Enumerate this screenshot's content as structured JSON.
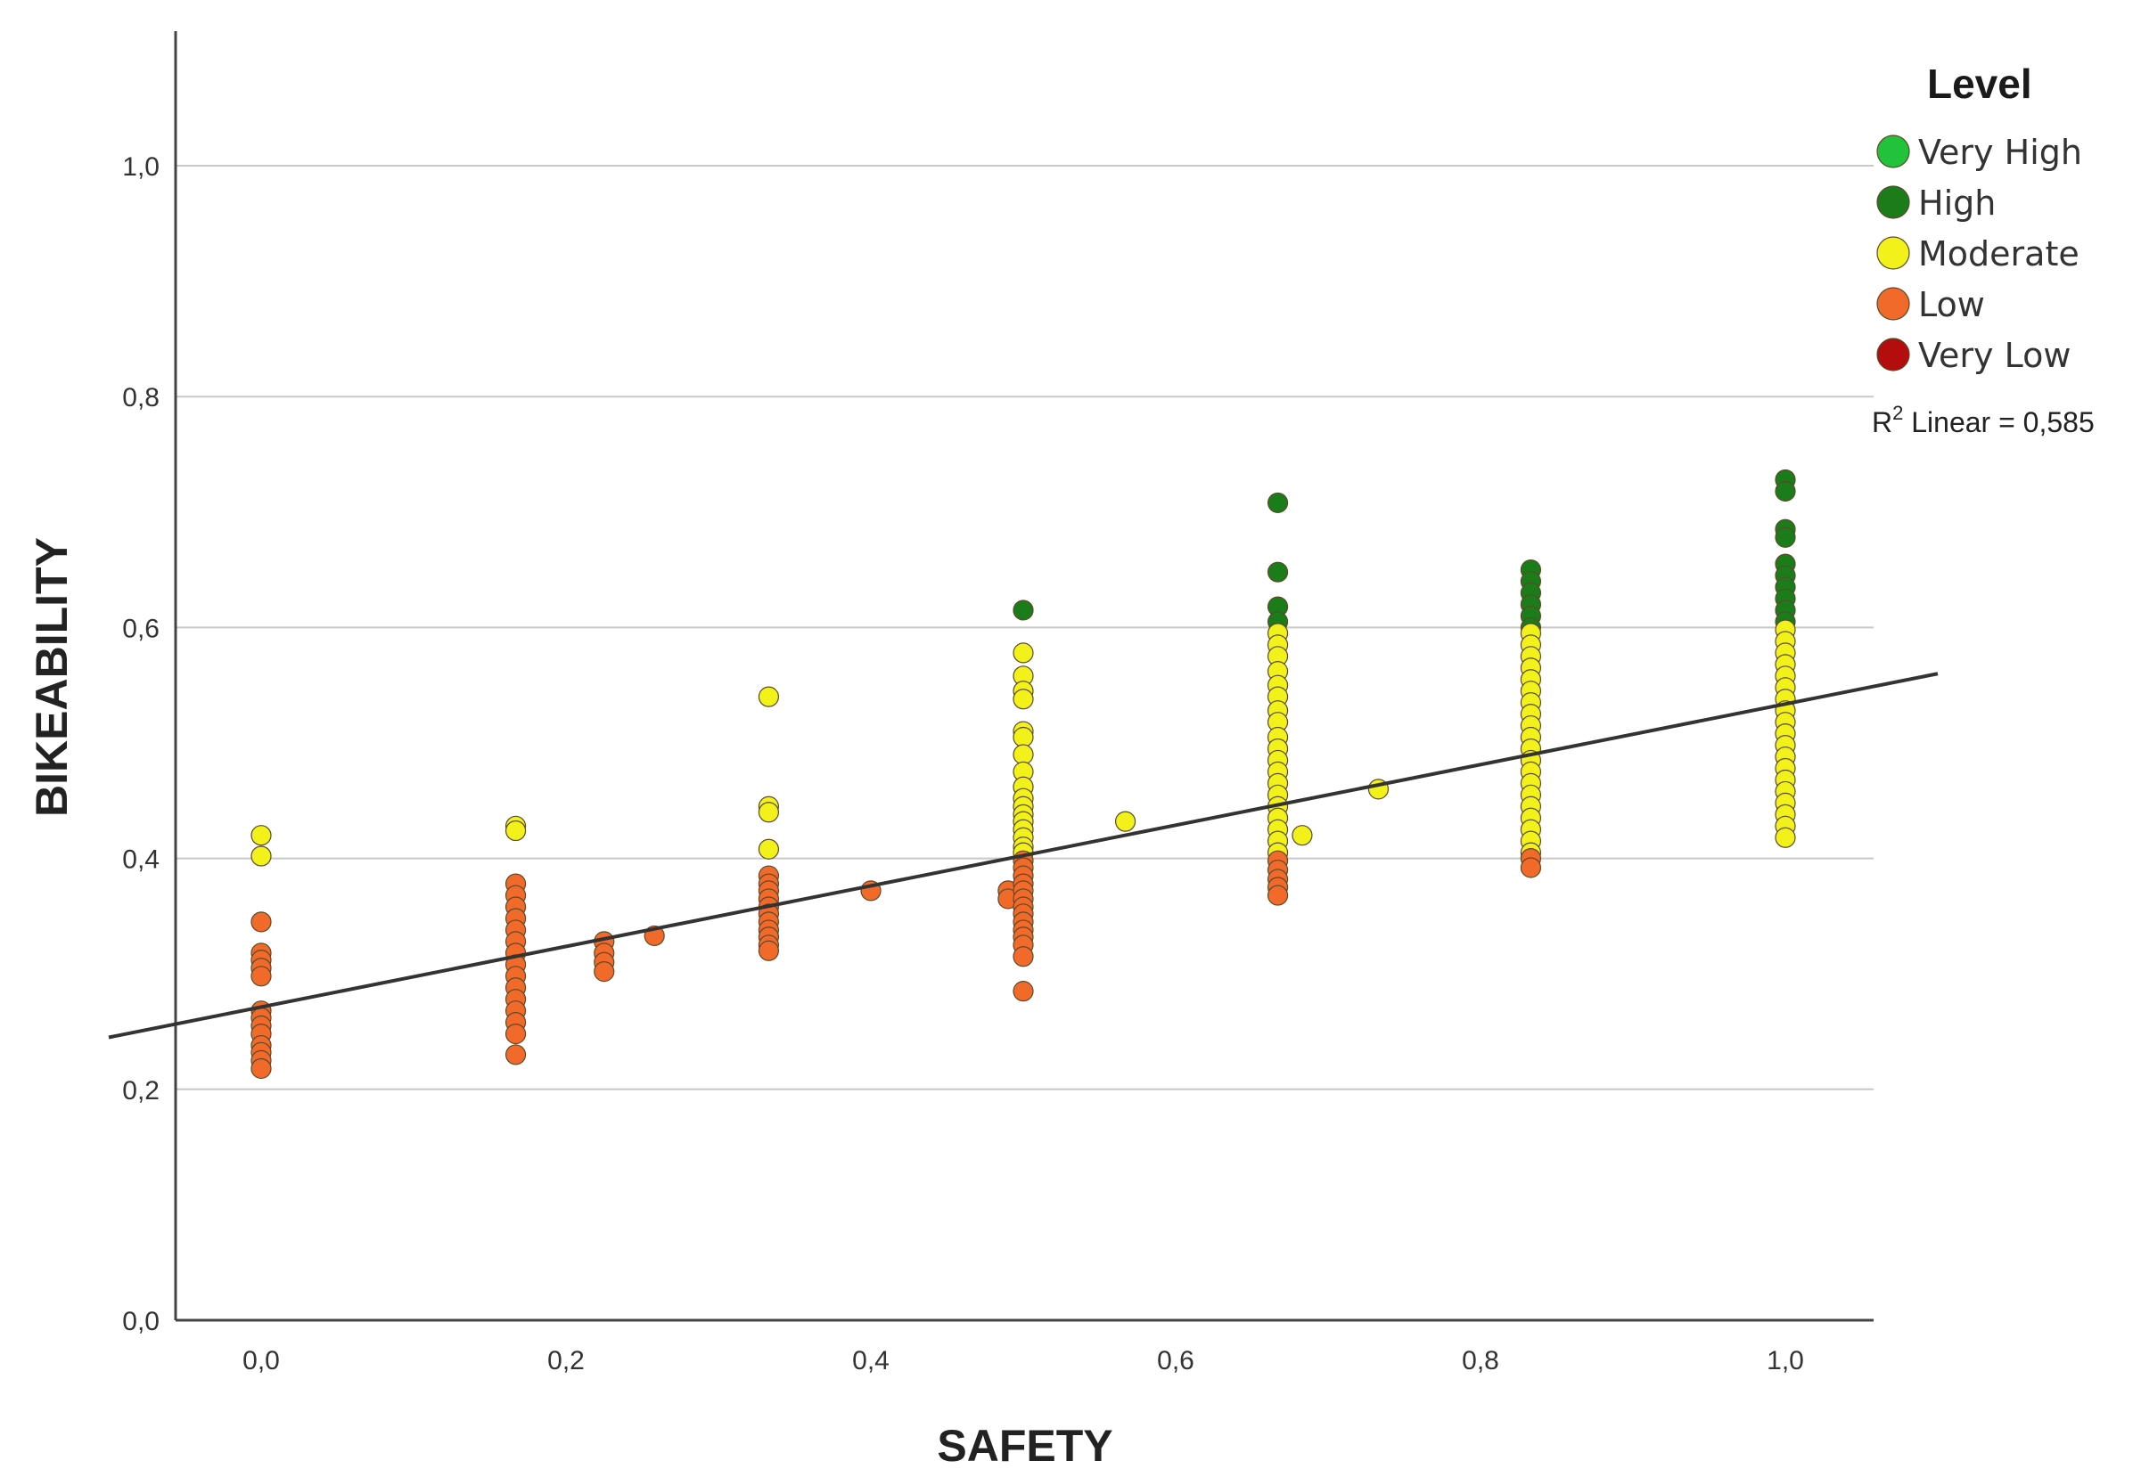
{
  "chart_data": {
    "type": "scatter",
    "xlabel": "SAFETY",
    "ylabel": "BIKEABILITY",
    "xlim": [
      -0.1,
      1.1
    ],
    "ylim": [
      0.0,
      1.12
    ],
    "x_ticks": [
      "0,0",
      "0,2",
      "0,4",
      "0,6",
      "0,8",
      "1,0"
    ],
    "y_ticks": [
      "0,0",
      "0,2",
      "0,4",
      "0,6",
      "0,8",
      "1,0"
    ],
    "grid": "horizontal",
    "legend": {
      "title": "Level",
      "placement": "top-right",
      "entries": [
        {
          "name": "Very High",
          "color": "#22c33a"
        },
        {
          "name": "High",
          "color": "#1a7d1a"
        },
        {
          "name": "Moderate",
          "color": "#f2f21a"
        },
        {
          "name": "Low",
          "color": "#f26a2a"
        },
        {
          "name": "Very Low",
          "color": "#b30d0d"
        }
      ]
    },
    "fit_line": {
      "type": "linear",
      "label_prefix": "R",
      "label_sup": "2",
      "label_rest": " Linear = 0,585",
      "start": [
        -0.1,
        0.245
      ],
      "end": [
        1.1,
        0.56
      ]
    },
    "series": [
      {
        "name": "High",
        "color": "#1a7d1a",
        "points": [
          [
            0.5,
            0.615
          ],
          [
            0.667,
            0.708
          ],
          [
            0.667,
            0.648
          ],
          [
            0.667,
            0.618
          ],
          [
            0.667,
            0.605
          ],
          [
            0.833,
            0.65
          ],
          [
            0.833,
            0.64
          ],
          [
            0.833,
            0.63
          ],
          [
            0.833,
            0.62
          ],
          [
            0.833,
            0.61
          ],
          [
            0.833,
            0.6
          ],
          [
            1.0,
            0.728
          ],
          [
            1.0,
            0.718
          ],
          [
            1.0,
            0.685
          ],
          [
            1.0,
            0.678
          ],
          [
            1.0,
            0.655
          ],
          [
            1.0,
            0.645
          ],
          [
            1.0,
            0.635
          ],
          [
            1.0,
            0.625
          ],
          [
            1.0,
            0.615
          ],
          [
            1.0,
            0.605
          ]
        ]
      },
      {
        "name": "Moderate",
        "color": "#f2f21a",
        "points": [
          [
            0.0,
            0.42
          ],
          [
            0.0,
            0.402
          ],
          [
            0.167,
            0.428
          ],
          [
            0.167,
            0.424
          ],
          [
            0.333,
            0.54
          ],
          [
            0.333,
            0.445
          ],
          [
            0.333,
            0.44
          ],
          [
            0.333,
            0.408
          ],
          [
            0.5,
            0.578
          ],
          [
            0.5,
            0.558
          ],
          [
            0.5,
            0.545
          ],
          [
            0.5,
            0.538
          ],
          [
            0.5,
            0.51
          ],
          [
            0.5,
            0.505
          ],
          [
            0.5,
            0.49
          ],
          [
            0.5,
            0.475
          ],
          [
            0.5,
            0.462
          ],
          [
            0.5,
            0.452
          ],
          [
            0.5,
            0.445
          ],
          [
            0.5,
            0.438
          ],
          [
            0.5,
            0.432
          ],
          [
            0.5,
            0.425
          ],
          [
            0.5,
            0.418
          ],
          [
            0.5,
            0.41
          ],
          [
            0.5,
            0.405
          ],
          [
            0.567,
            0.432
          ],
          [
            0.667,
            0.595
          ],
          [
            0.667,
            0.585
          ],
          [
            0.667,
            0.575
          ],
          [
            0.667,
            0.562
          ],
          [
            0.667,
            0.55
          ],
          [
            0.667,
            0.54
          ],
          [
            0.667,
            0.528
          ],
          [
            0.667,
            0.518
          ],
          [
            0.667,
            0.505
          ],
          [
            0.667,
            0.495
          ],
          [
            0.667,
            0.485
          ],
          [
            0.667,
            0.475
          ],
          [
            0.667,
            0.465
          ],
          [
            0.667,
            0.455
          ],
          [
            0.667,
            0.445
          ],
          [
            0.667,
            0.435
          ],
          [
            0.667,
            0.425
          ],
          [
            0.667,
            0.415
          ],
          [
            0.667,
            0.405
          ],
          [
            0.683,
            0.42
          ],
          [
            0.733,
            0.46
          ],
          [
            0.833,
            0.595
          ],
          [
            0.833,
            0.585
          ],
          [
            0.833,
            0.575
          ],
          [
            0.833,
            0.565
          ],
          [
            0.833,
            0.555
          ],
          [
            0.833,
            0.545
          ],
          [
            0.833,
            0.535
          ],
          [
            0.833,
            0.525
          ],
          [
            0.833,
            0.515
          ],
          [
            0.833,
            0.505
          ],
          [
            0.833,
            0.495
          ],
          [
            0.833,
            0.485
          ],
          [
            0.833,
            0.475
          ],
          [
            0.833,
            0.465
          ],
          [
            0.833,
            0.455
          ],
          [
            0.833,
            0.445
          ],
          [
            0.833,
            0.435
          ],
          [
            0.833,
            0.425
          ],
          [
            0.833,
            0.415
          ],
          [
            0.833,
            0.405
          ],
          [
            1.0,
            0.598
          ],
          [
            1.0,
            0.588
          ],
          [
            1.0,
            0.578
          ],
          [
            1.0,
            0.568
          ],
          [
            1.0,
            0.558
          ],
          [
            1.0,
            0.548
          ],
          [
            1.0,
            0.538
          ],
          [
            1.0,
            0.528
          ],
          [
            1.0,
            0.518
          ],
          [
            1.0,
            0.508
          ],
          [
            1.0,
            0.498
          ],
          [
            1.0,
            0.488
          ],
          [
            1.0,
            0.478
          ],
          [
            1.0,
            0.468
          ],
          [
            1.0,
            0.458
          ],
          [
            1.0,
            0.448
          ],
          [
            1.0,
            0.438
          ],
          [
            1.0,
            0.428
          ],
          [
            1.0,
            0.418
          ]
        ]
      },
      {
        "name": "Low",
        "color": "#f26a2a",
        "points": [
          [
            0.0,
            0.345
          ],
          [
            0.0,
            0.318
          ],
          [
            0.0,
            0.312
          ],
          [
            0.0,
            0.305
          ],
          [
            0.0,
            0.298
          ],
          [
            0.0,
            0.268
          ],
          [
            0.0,
            0.262
          ],
          [
            0.0,
            0.255
          ],
          [
            0.0,
            0.248
          ],
          [
            0.0,
            0.238
          ],
          [
            0.0,
            0.232
          ],
          [
            0.0,
            0.225
          ],
          [
            0.0,
            0.218
          ],
          [
            0.167,
            0.378
          ],
          [
            0.167,
            0.368
          ],
          [
            0.167,
            0.358
          ],
          [
            0.167,
            0.348
          ],
          [
            0.167,
            0.338
          ],
          [
            0.167,
            0.328
          ],
          [
            0.167,
            0.318
          ],
          [
            0.167,
            0.308
          ],
          [
            0.167,
            0.298
          ],
          [
            0.167,
            0.288
          ],
          [
            0.167,
            0.278
          ],
          [
            0.167,
            0.268
          ],
          [
            0.167,
            0.258
          ],
          [
            0.167,
            0.248
          ],
          [
            0.167,
            0.23
          ],
          [
            0.225,
            0.328
          ],
          [
            0.225,
            0.318
          ],
          [
            0.225,
            0.31
          ],
          [
            0.225,
            0.302
          ],
          [
            0.258,
            0.333
          ],
          [
            0.333,
            0.385
          ],
          [
            0.333,
            0.378
          ],
          [
            0.333,
            0.372
          ],
          [
            0.333,
            0.365
          ],
          [
            0.333,
            0.358
          ],
          [
            0.333,
            0.352
          ],
          [
            0.333,
            0.345
          ],
          [
            0.333,
            0.338
          ],
          [
            0.333,
            0.332
          ],
          [
            0.333,
            0.325
          ],
          [
            0.333,
            0.32
          ],
          [
            0.4,
            0.372
          ],
          [
            0.49,
            0.372
          ],
          [
            0.49,
            0.365
          ],
          [
            0.5,
            0.398
          ],
          [
            0.5,
            0.392
          ],
          [
            0.5,
            0.385
          ],
          [
            0.5,
            0.378
          ],
          [
            0.5,
            0.372
          ],
          [
            0.5,
            0.365
          ],
          [
            0.5,
            0.358
          ],
          [
            0.5,
            0.352
          ],
          [
            0.5,
            0.345
          ],
          [
            0.5,
            0.338
          ],
          [
            0.5,
            0.332
          ],
          [
            0.5,
            0.325
          ],
          [
            0.5,
            0.315
          ],
          [
            0.5,
            0.285
          ],
          [
            0.667,
            0.398
          ],
          [
            0.667,
            0.39
          ],
          [
            0.667,
            0.382
          ],
          [
            0.667,
            0.375
          ],
          [
            0.667,
            0.368
          ],
          [
            0.833,
            0.4
          ],
          [
            0.833,
            0.392
          ]
        ]
      }
    ]
  }
}
